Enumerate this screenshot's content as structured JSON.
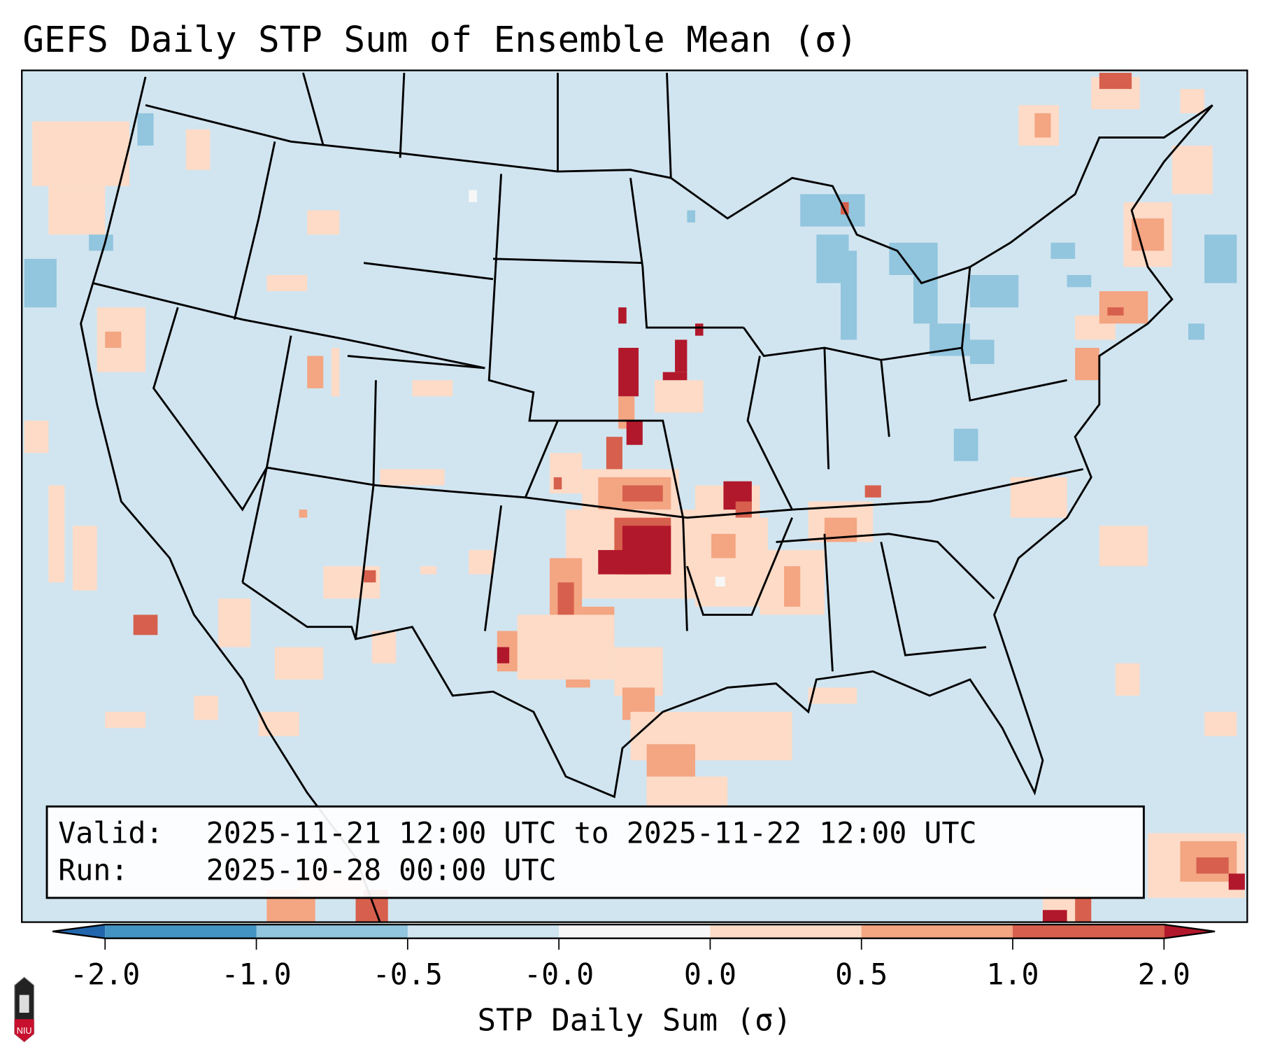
{
  "title": "GEFS Daily STP Sum of Ensemble Mean (σ)",
  "info_box": {
    "valid_label": "Valid:",
    "valid_value": "2025-11-21 12:00 UTC to 2025-11-22 12:00 UTC",
    "run_label": "Run:",
    "run_value": "2025-10-28 00:00 UTC"
  },
  "colorbar": {
    "label": "STP Daily Sum (σ)",
    "ticks": [
      "-2.0",
      "-1.0",
      "-0.5",
      "-0.0",
      "0.0",
      "0.5",
      "1.0",
      "2.0"
    ],
    "colors": [
      "#4393c3",
      "#92c5de",
      "#d1e5f0",
      "#f7f7f7",
      "#fddbc7",
      "#f4a582",
      "#d6604d"
    ],
    "extend_low_color": "#2166ac",
    "extend_high_color": "#b2182b"
  },
  "map_background": "#d1e5f0",
  "logo": {
    "text": "NIU"
  }
}
